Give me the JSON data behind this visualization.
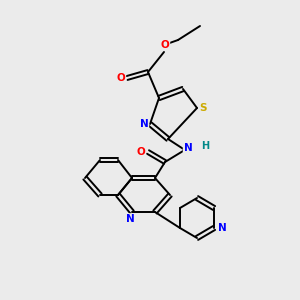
{
  "background_color": "#ebebeb",
  "atom_colors": {
    "C": "#000000",
    "N": "#0000ff",
    "O": "#ff0000",
    "S": "#ccaa00",
    "H": "#008888"
  },
  "bond_color": "#000000",
  "figsize": [
    3.0,
    3.0
  ],
  "dpi": 100
}
